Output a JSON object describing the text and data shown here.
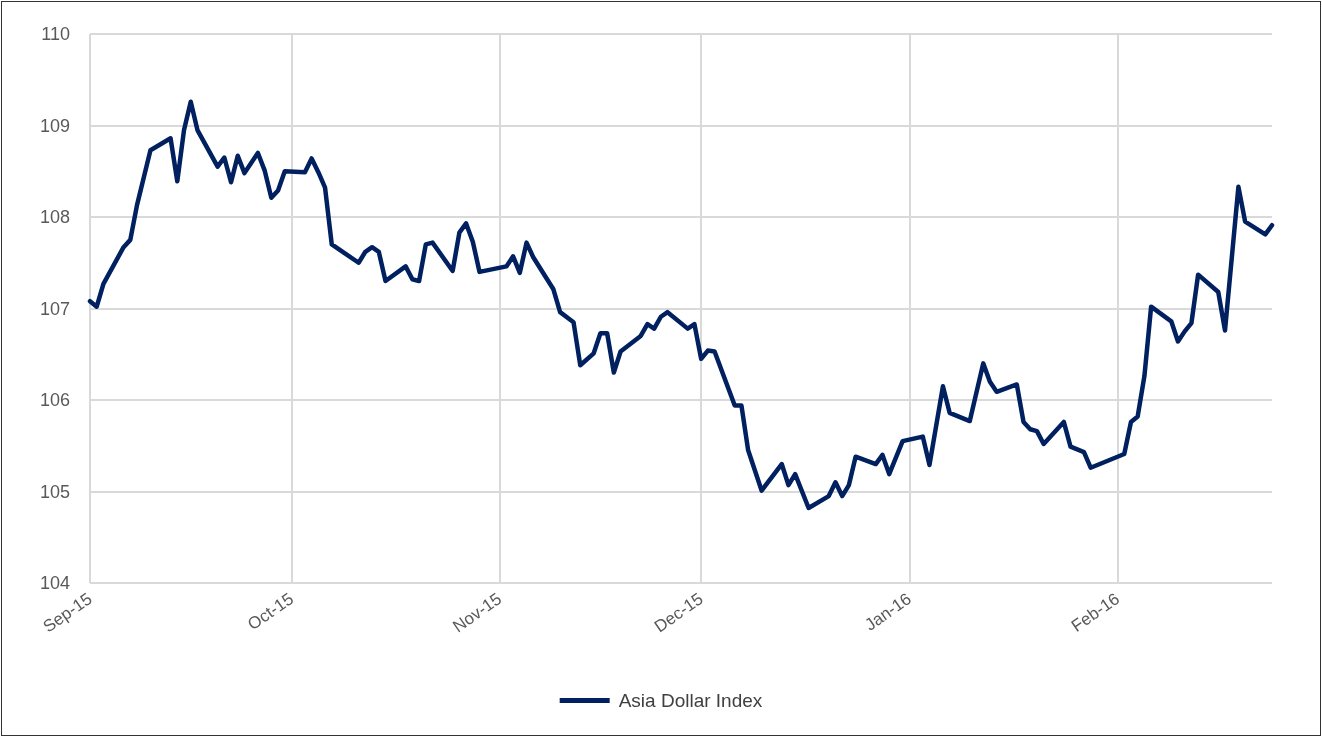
{
  "chart_data": {
    "type": "line",
    "x": [
      "2015-09-01",
      "2015-09-02",
      "2015-09-03",
      "2015-09-06",
      "2015-09-07",
      "2015-09-08",
      "2015-09-10",
      "2015-09-13",
      "2015-09-14",
      "2015-09-15",
      "2015-09-16",
      "2015-09-17",
      "2015-09-20",
      "2015-09-21",
      "2015-09-22",
      "2015-09-23",
      "2015-09-24",
      "2015-09-26",
      "2015-09-27",
      "2015-09-28",
      "2015-09-29",
      "2015-09-30",
      "2015-10-03",
      "2015-10-04",
      "2015-10-05",
      "2015-10-06",
      "2015-10-07",
      "2015-10-11",
      "2015-10-12",
      "2015-10-13",
      "2015-10-14",
      "2015-10-15",
      "2015-10-18",
      "2015-10-19",
      "2015-10-20",
      "2015-10-21",
      "2015-10-22",
      "2015-10-25",
      "2015-10-26",
      "2015-10-27",
      "2015-10-28",
      "2015-10-29",
      "2015-11-02",
      "2015-11-03",
      "2015-11-04",
      "2015-11-05",
      "2015-11-06",
      "2015-11-09",
      "2015-11-10",
      "2015-11-12",
      "2015-11-13",
      "2015-11-15",
      "2015-11-16",
      "2015-11-17",
      "2015-11-18",
      "2015-11-19",
      "2015-11-22",
      "2015-11-23",
      "2015-11-24",
      "2015-11-25",
      "2015-11-26",
      "2015-11-29",
      "2015-11-30",
      "2015-12-01",
      "2015-12-02",
      "2015-12-03",
      "2015-12-06",
      "2015-12-07",
      "2015-12-08",
      "2015-12-10",
      "2015-12-13",
      "2015-12-14",
      "2015-12-15",
      "2015-12-17",
      "2015-12-20",
      "2015-12-21",
      "2015-12-22",
      "2015-12-23",
      "2015-12-24",
      "2015-12-27",
      "2015-12-28",
      "2015-12-29",
      "2015-12-31",
      "2016-01-03",
      "2016-01-04",
      "2016-01-06",
      "2016-01-07",
      "2016-01-10",
      "2016-01-12",
      "2016-01-13",
      "2016-01-14",
      "2016-01-17",
      "2016-01-18",
      "2016-01-19",
      "2016-01-20",
      "2016-01-21",
      "2016-01-24",
      "2016-01-25",
      "2016-01-26",
      "2016-01-27",
      "2016-01-28",
      "2016-02-02",
      "2016-02-03",
      "2016-02-04",
      "2016-02-05",
      "2016-02-06",
      "2016-02-09",
      "2016-02-10",
      "2016-02-11",
      "2016-02-12",
      "2016-02-13",
      "2016-02-16",
      "2016-02-17",
      "2016-02-19",
      "2016-02-20",
      "2016-02-23",
      "2016-02-24"
    ],
    "series": [
      {
        "name": "Asia Dollar Index",
        "color": "#002060",
        "values": [
          107.08,
          107.02,
          107.27,
          107.67,
          107.75,
          108.13,
          108.73,
          108.86,
          108.39,
          108.95,
          109.26,
          108.95,
          108.55,
          108.65,
          108.38,
          108.67,
          108.48,
          108.7,
          108.51,
          108.21,
          108.29,
          108.5,
          108.49,
          108.64,
          108.49,
          108.32,
          107.7,
          107.5,
          107.62,
          107.67,
          107.62,
          107.3,
          107.46,
          107.32,
          107.3,
          107.7,
          107.72,
          107.41,
          107.83,
          107.93,
          107.73,
          107.4,
          107.46,
          107.57,
          107.39,
          107.72,
          107.56,
          107.21,
          106.96,
          106.85,
          106.38,
          106.51,
          106.73,
          106.73,
          106.3,
          106.53,
          106.7,
          106.83,
          106.78,
          106.91,
          106.96,
          106.78,
          106.83,
          106.45,
          106.54,
          106.53,
          105.94,
          105.94,
          105.45,
          105.01,
          105.3,
          105.07,
          105.19,
          104.82,
          104.95,
          105.1,
          104.95,
          105.07,
          105.38,
          105.3,
          105.4,
          105.19,
          105.55,
          105.6,
          105.29,
          106.15,
          105.86,
          105.77,
          106.4,
          106.2,
          106.09,
          106.17,
          105.76,
          105.68,
          105.66,
          105.52,
          105.76,
          105.49,
          105.46,
          105.43,
          105.26,
          105.41,
          105.76,
          105.82,
          106.26,
          107.02,
          106.86,
          106.64,
          106.75,
          106.84,
          107.37,
          107.18,
          106.76,
          108.33,
          107.95,
          107.81,
          107.91
        ]
      }
    ],
    "xlim": [
      "2015-09-01",
      "2016-02-24"
    ],
    "xticks": [
      {
        "value": "2015-09-01",
        "label": "Sep-15"
      },
      {
        "value": "2015-10-01",
        "label": "Oct-15"
      },
      {
        "value": "2015-11-01",
        "label": "Nov-15"
      },
      {
        "value": "2015-12-01",
        "label": "Dec-15"
      },
      {
        "value": "2016-01-01",
        "label": "Jan-16"
      },
      {
        "value": "2016-02-01",
        "label": "Feb-16"
      }
    ],
    "ylim": [
      104,
      110
    ],
    "yticks": [
      104,
      105,
      106,
      107,
      108,
      109,
      110
    ],
    "grid": true,
    "legend": "bottom",
    "marker": "none",
    "line_style": "solid"
  }
}
